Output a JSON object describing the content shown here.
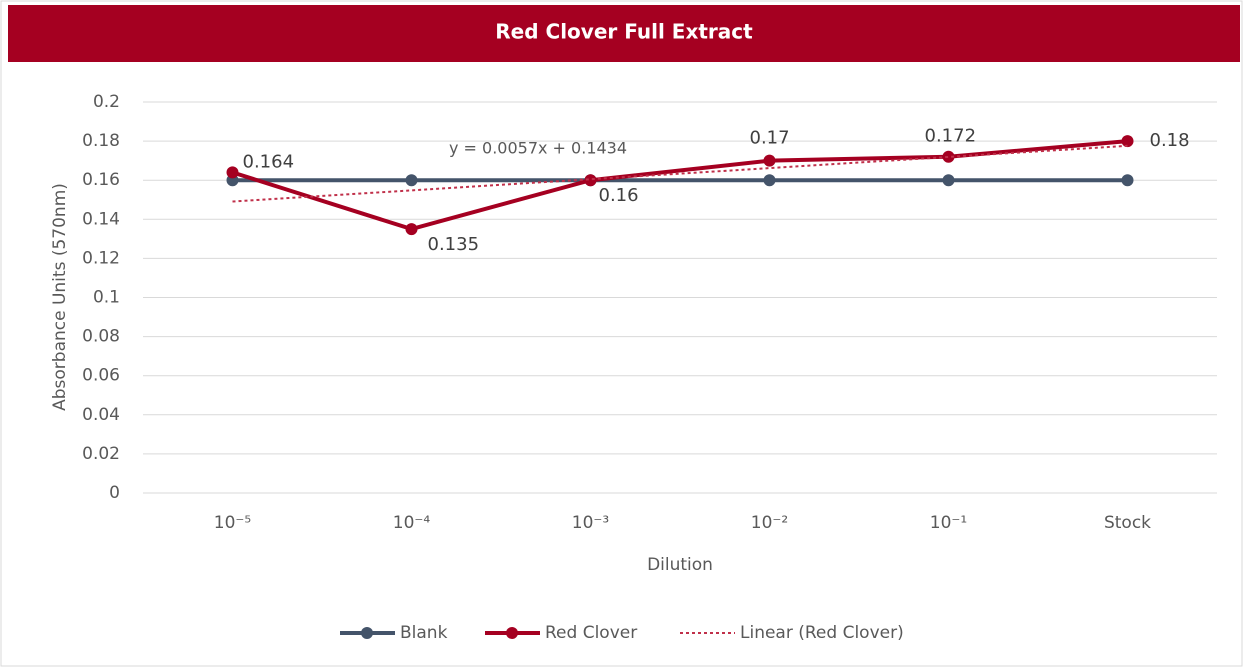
{
  "chart_data": {
    "type": "line",
    "title": "Red Clover Full Extract",
    "x_label": "Dilution",
    "y_label": "Absorbance Units (570nm)",
    "categories": [
      "10⁻⁵",
      "10⁻⁴",
      "10⁻³",
      "10⁻²",
      "10⁻¹",
      "Stock"
    ],
    "series": [
      {
        "name": "Blank",
        "color": "#44546a",
        "values": [
          0.16,
          0.16,
          0.16,
          0.16,
          0.16,
          0.16
        ]
      },
      {
        "name": "Red Clover",
        "color": "#a50021",
        "values": [
          0.164,
          0.135,
          0.16,
          0.17,
          0.172,
          0.18
        ],
        "data_labels": true
      },
      {
        "name": "Linear (Red Clover)",
        "color": "#c0304a",
        "dashed": true,
        "values": [
          0.1491,
          0.1548,
          0.1605,
          0.1662,
          0.1719,
          0.1776
        ]
      }
    ],
    "annotation": "y = 0.0057x + 0.1434",
    "ylim": [
      0,
      0.2
    ],
    "yticks": [
      0,
      0.02,
      0.04,
      0.06,
      0.08,
      0.1,
      0.12,
      0.14,
      0.16,
      0.18,
      0.2
    ],
    "grid": true,
    "legend": "bottom"
  }
}
